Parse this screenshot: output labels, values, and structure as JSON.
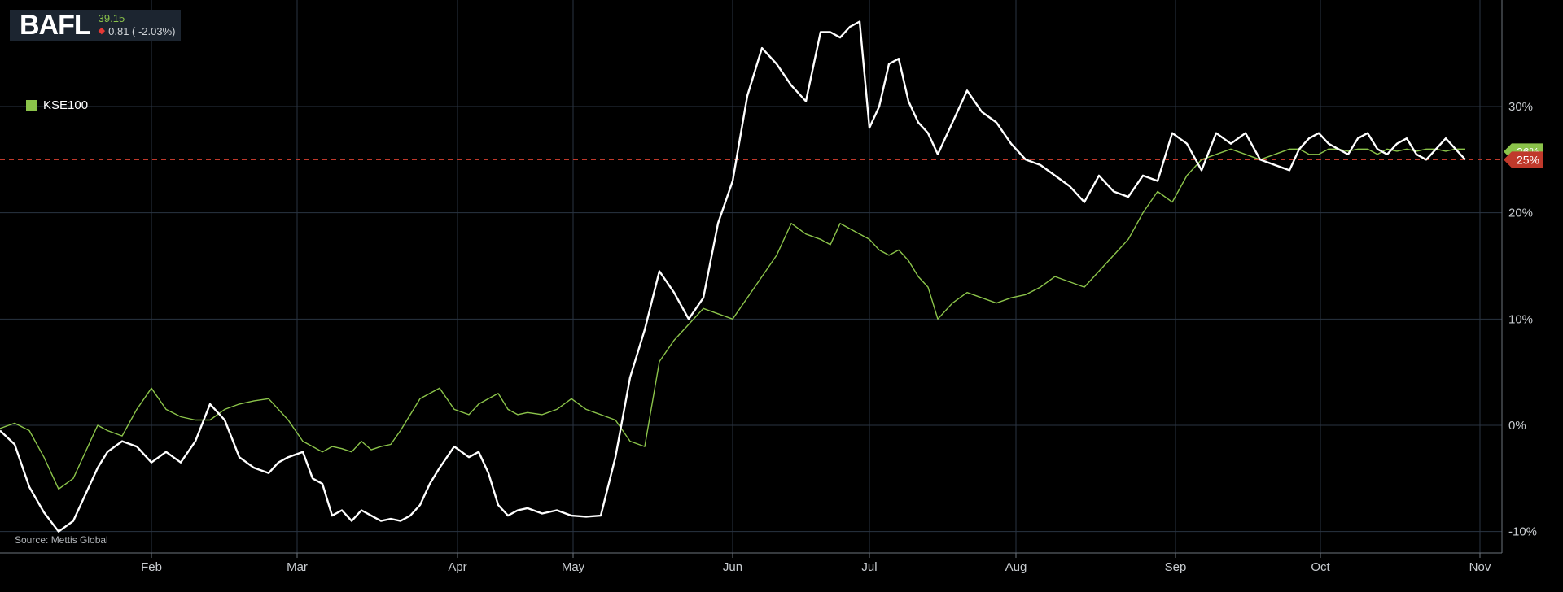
{
  "ticker": {
    "symbol": "BAFL",
    "price": "39.15",
    "change": "0.81 ( -2.03%)",
    "direction_icon": "down-triangle-icon"
  },
  "legend": {
    "label": "KSE100",
    "color": "#8bc34a"
  },
  "source": "Source: Mettis Global",
  "colors": {
    "background": "#000000",
    "grid": "#2a3442",
    "bafl_line": "#ffffff",
    "kse_line": "#8bc34a",
    "reference": "#c0392b",
    "tag_bafl": "#c0392b",
    "tag_kse": "#8bc34a"
  },
  "chart_data": {
    "type": "line",
    "title": "",
    "xlabel": "",
    "ylabel": "",
    "x_ticks": [
      "Feb",
      "Mar",
      "Apr",
      "May",
      "Jun",
      "Jul",
      "Aug",
      "Sep",
      "Oct",
      "Nov"
    ],
    "y_ticks": [
      "30%",
      "20%",
      "10%",
      "0%",
      "-10%"
    ],
    "y_tick_values": [
      30,
      20,
      10,
      0,
      -10
    ],
    "ylim": [
      -12,
      40
    ],
    "grid": true,
    "reference_line": 25,
    "end_tags": {
      "bafl": "25%",
      "kse": "26%"
    },
    "series": [
      {
        "name": "BAFL",
        "x": [
          0,
          3,
          6,
          9,
          12,
          15,
          18,
          20,
          22,
          25,
          28,
          31,
          34,
          37,
          40,
          43,
          46,
          49,
          52,
          55,
          57,
          59,
          62,
          64,
          66,
          68,
          70,
          72,
          74,
          76,
          78,
          80,
          82,
          84,
          86,
          88,
          90,
          93,
          96,
          98,
          100,
          102,
          104,
          106,
          108,
          111,
          114,
          117,
          120,
          123,
          126,
          129,
          132,
          135,
          138,
          141,
          144,
          147,
          150,
          153,
          156,
          159,
          162,
          165,
          168,
          170,
          172,
          174,
          176,
          178,
          180,
          182,
          184,
          186,
          188,
          190,
          192,
          195,
          198,
          201,
          204,
          207,
          210,
          213,
          216,
          219,
          222,
          225,
          228,
          231,
          234,
          237,
          240,
          243,
          246,
          249,
          252,
          255,
          258,
          261,
          264,
          266,
          268,
          270,
          272,
          274,
          276,
          278,
          280,
          282,
          284,
          286,
          288,
          290,
          292,
          294,
          296,
          298,
          300
        ],
        "y": [
          -0.5,
          -1.8,
          -5.8,
          -8.2,
          -10.0,
          -9.0,
          -6.0,
          -4.0,
          -2.5,
          -1.5,
          -2.0,
          -3.5,
          -2.5,
          -3.5,
          -1.5,
          2.0,
          0.5,
          -3.0,
          -4.0,
          -4.5,
          -3.5,
          -3.0,
          -2.5,
          -5.0,
          -5.5,
          -8.5,
          -8.0,
          -9.0,
          -8.0,
          -8.5,
          -9.0,
          -8.8,
          -9.0,
          -8.5,
          -7.5,
          -5.5,
          -4.0,
          -2.0,
          -3.0,
          -2.5,
          -4.5,
          -7.5,
          -8.5,
          -8.0,
          -7.8,
          -8.3,
          -8.0,
          -8.5,
          -8.6,
          -8.5,
          -3.0,
          4.5,
          9.0,
          14.5,
          12.5,
          10.0,
          12.0,
          19.0,
          23.0,
          31.0,
          35.5,
          34.0,
          32.0,
          30.5,
          37.0,
          37.0,
          36.5,
          37.5,
          38.0,
          28.0,
          30.0,
          34.0,
          34.5,
          30.5,
          28.5,
          27.5,
          25.5,
          28.5,
          31.5,
          29.5,
          28.5,
          26.5,
          25.0,
          24.5,
          23.5,
          22.5,
          21.0,
          23.5,
          22.0,
          21.5,
          23.5,
          23.0,
          27.5,
          26.5,
          24.0,
          27.5,
          26.5,
          27.5,
          25.0,
          24.5,
          24.0,
          26.0,
          27.0,
          27.5,
          26.5,
          26.0,
          25.5,
          27.0,
          27.5,
          26.0,
          25.5,
          26.5,
          27.0,
          25.5,
          25.0,
          26.0,
          27.0,
          26.0,
          25.0
        ]
      },
      {
        "name": "KSE100",
        "x": [
          0,
          3,
          6,
          9,
          12,
          15,
          18,
          20,
          22,
          25,
          28,
          31,
          34,
          37,
          40,
          43,
          46,
          49,
          52,
          55,
          57,
          59,
          62,
          64,
          66,
          68,
          70,
          72,
          74,
          76,
          78,
          80,
          82,
          84,
          86,
          88,
          90,
          93,
          96,
          98,
          100,
          102,
          104,
          106,
          108,
          111,
          114,
          117,
          120,
          123,
          126,
          129,
          132,
          135,
          138,
          141,
          144,
          147,
          150,
          153,
          156,
          159,
          162,
          165,
          168,
          170,
          172,
          174,
          176,
          178,
          180,
          182,
          184,
          186,
          188,
          190,
          192,
          195,
          198,
          201,
          204,
          207,
          210,
          213,
          216,
          219,
          222,
          225,
          228,
          231,
          234,
          237,
          240,
          243,
          246,
          249,
          252,
          255,
          258,
          261,
          264,
          266,
          268,
          270,
          272,
          274,
          276,
          278,
          280,
          282,
          284,
          286,
          288,
          290,
          292,
          294,
          296,
          298,
          300
        ],
        "y": [
          -0.3,
          0.2,
          -0.5,
          -3.0,
          -6.0,
          -5.0,
          -2.0,
          0.0,
          -0.5,
          -1.0,
          1.5,
          3.5,
          1.5,
          0.8,
          0.5,
          0.5,
          1.5,
          2.0,
          2.3,
          2.5,
          1.5,
          0.5,
          -1.5,
          -2.0,
          -2.5,
          -2.0,
          -2.2,
          -2.5,
          -1.5,
          -2.3,
          -2.0,
          -1.8,
          -0.5,
          1.0,
          2.5,
          3.0,
          3.5,
          1.5,
          1.0,
          2.0,
          2.5,
          3.0,
          1.5,
          1.0,
          1.2,
          1.0,
          1.5,
          2.5,
          1.5,
          1.0,
          0.5,
          -1.5,
          -2.0,
          6.0,
          8.0,
          9.5,
          11.0,
          10.5,
          10.0,
          12.0,
          14.0,
          16.0,
          19.0,
          18.0,
          17.5,
          17.0,
          19.0,
          18.5,
          18.0,
          17.5,
          16.5,
          16.0,
          16.5,
          15.5,
          14.0,
          13.0,
          10.0,
          11.5,
          12.5,
          12.0,
          11.5,
          12.0,
          12.3,
          13.0,
          14.0,
          13.5,
          13.0,
          14.5,
          16.0,
          17.5,
          20.0,
          22.0,
          21.0,
          23.5,
          25.0,
          25.5,
          26.0,
          25.5,
          25.0,
          25.5,
          26.0,
          26.0,
          25.5,
          25.5,
          26.0,
          26.0,
          25.8,
          26.0,
          26.0,
          25.5,
          26.0,
          25.8,
          26.0,
          25.8,
          26.0,
          26.0,
          25.8,
          26.0,
          26.0
        ]
      }
    ]
  }
}
